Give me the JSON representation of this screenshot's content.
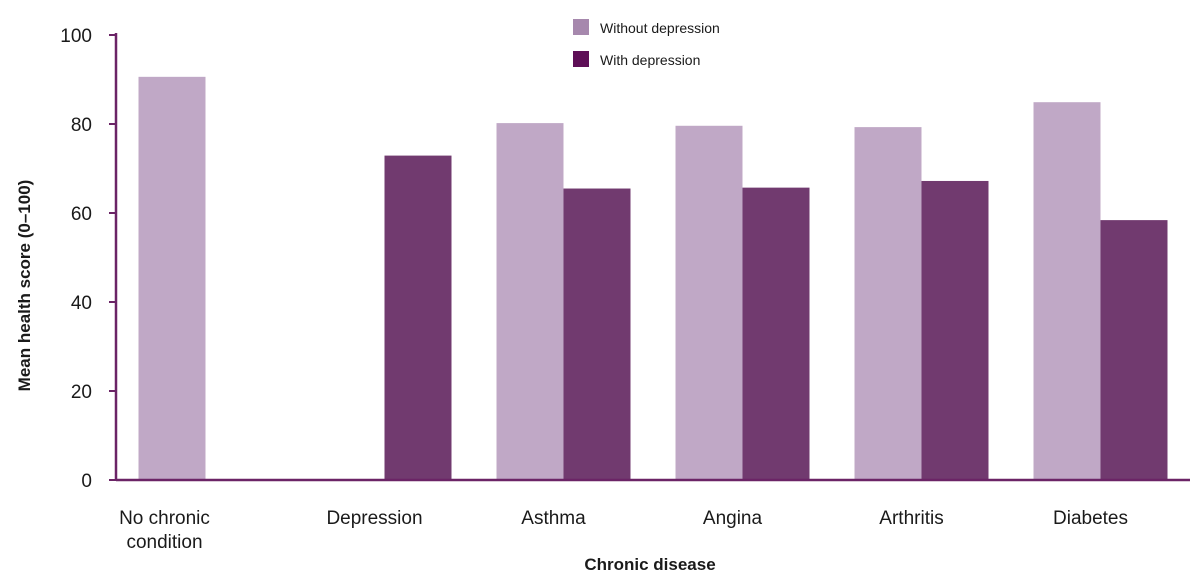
{
  "chart_data": {
    "type": "bar",
    "categories": [
      [
        "No chronic",
        "condition"
      ],
      [
        "Depression"
      ],
      [
        "Asthma"
      ],
      [
        "Angina"
      ],
      [
        "Arthritis"
      ],
      [
        "Diabetes"
      ]
    ],
    "series": [
      {
        "name": "Without depression",
        "color": "#c0a8c6",
        "values": [
          90.6,
          null,
          80.2,
          79.6,
          79.3,
          84.9
        ]
      },
      {
        "name": "With depression",
        "color": "#713a6f",
        "values": [
          null,
          72.9,
          65.5,
          65.7,
          67.2,
          58.4
        ]
      }
    ],
    "legend_swatch_colors": [
      "#a688ad",
      "#5e0f57"
    ],
    "xlabel": "Chronic disease",
    "ylabel": "Mean health score (0–100)",
    "ylim": [
      0,
      100
    ],
    "yticks": [
      0,
      20,
      40,
      60,
      80,
      100
    ],
    "axis_color": "#6b2466",
    "grid": false,
    "legend_position": "top-center"
  }
}
